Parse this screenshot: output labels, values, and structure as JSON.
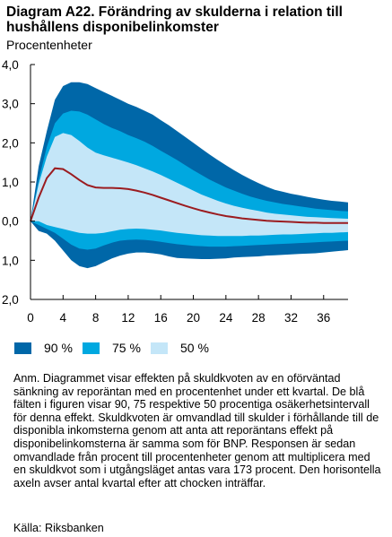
{
  "title": "Diagram A22. Förändring av skulderna i relation till hushållens disponibelinkomster",
  "subtitle": "Procentenheter",
  "chart_data": {
    "type": "area",
    "title": "Diagram A22. Förändring av skulderna i relation till hushållens disponibelinkomster",
    "ylabel": "Procentenheter",
    "xlabel": "",
    "xlim": [
      0,
      39
    ],
    "ylim": [
      -2,
      4
    ],
    "x_ticks": [
      0,
      4,
      8,
      12,
      16,
      20,
      24,
      28,
      32,
      36
    ],
    "y_ticks": [
      4,
      3,
      2,
      1,
      0,
      -1,
      -2
    ],
    "y_tick_labels": [
      "4,0",
      "3,0",
      "2,0",
      "1,0",
      "0,0",
      "1,0",
      "2,0"
    ],
    "grid": false,
    "x": [
      0,
      1,
      2,
      3,
      4,
      5,
      6,
      7,
      8,
      9,
      10,
      11,
      12,
      13,
      14,
      15,
      16,
      17,
      18,
      19,
      20,
      21,
      22,
      23,
      24,
      25,
      26,
      27,
      28,
      29,
      30,
      31,
      32,
      33,
      34,
      35,
      36,
      37,
      38,
      39
    ],
    "series": [
      {
        "name": "",
        "role": "median",
        "values": [
          0,
          0.6,
          1.1,
          1.35,
          1.33,
          1.2,
          1.05,
          0.92,
          0.86,
          0.85,
          0.85,
          0.84,
          0.82,
          0.78,
          0.73,
          0.67,
          0.6,
          0.53,
          0.46,
          0.39,
          0.33,
          0.27,
          0.22,
          0.17,
          0.13,
          0.1,
          0.07,
          0.05,
          0.03,
          0.01,
          0.0,
          -0.01,
          -0.02,
          -0.03,
          -0.04,
          -0.04,
          -0.05,
          -0.05,
          -0.05,
          -0.05
        ]
      },
      {
        "name": "90 %",
        "role": "upper",
        "values": [
          0,
          1.4,
          2.3,
          3.1,
          3.45,
          3.55,
          3.55,
          3.5,
          3.4,
          3.3,
          3.2,
          3.1,
          3.0,
          2.92,
          2.82,
          2.72,
          2.58,
          2.45,
          2.3,
          2.15,
          2.0,
          1.85,
          1.7,
          1.56,
          1.43,
          1.3,
          1.18,
          1.07,
          0.97,
          0.88,
          0.8,
          0.75,
          0.7,
          0.66,
          0.62,
          0.58,
          0.55,
          0.52,
          0.5,
          0.48
        ]
      },
      {
        "name": "90 %",
        "role": "lower",
        "values": [
          0,
          -0.25,
          -0.32,
          -0.5,
          -0.75,
          -1.0,
          -1.15,
          -1.2,
          -1.15,
          -1.05,
          -0.95,
          -0.88,
          -0.83,
          -0.8,
          -0.8,
          -0.82,
          -0.85,
          -0.9,
          -0.94,
          -0.95,
          -0.96,
          -0.97,
          -0.97,
          -0.96,
          -0.95,
          -0.93,
          -0.92,
          -0.91,
          -0.9,
          -0.88,
          -0.87,
          -0.86,
          -0.85,
          -0.84,
          -0.83,
          -0.82,
          -0.8,
          -0.78,
          -0.76,
          -0.74
        ]
      },
      {
        "name": "75 %",
        "role": "upper",
        "values": [
          0,
          1.05,
          1.9,
          2.5,
          2.75,
          2.82,
          2.8,
          2.72,
          2.6,
          2.48,
          2.38,
          2.3,
          2.2,
          2.12,
          2.03,
          1.92,
          1.8,
          1.68,
          1.56,
          1.43,
          1.3,
          1.18,
          1.06,
          0.96,
          0.86,
          0.78,
          0.7,
          0.63,
          0.57,
          0.52,
          0.48,
          0.44,
          0.41,
          0.38,
          0.35,
          0.32,
          0.3,
          0.28,
          0.26,
          0.25
        ]
      },
      {
        "name": "75 %",
        "role": "lower",
        "values": [
          0,
          -0.1,
          -0.2,
          -0.3,
          -0.45,
          -0.6,
          -0.7,
          -0.73,
          -0.7,
          -0.62,
          -0.55,
          -0.5,
          -0.48,
          -0.47,
          -0.48,
          -0.5,
          -0.53,
          -0.56,
          -0.59,
          -0.61,
          -0.63,
          -0.64,
          -0.65,
          -0.65,
          -0.65,
          -0.64,
          -0.63,
          -0.62,
          -0.61,
          -0.6,
          -0.59,
          -0.58,
          -0.57,
          -0.56,
          -0.55,
          -0.54,
          -0.53,
          -0.52,
          -0.51,
          -0.5
        ]
      },
      {
        "name": "50 %",
        "role": "upper",
        "values": [
          0,
          0.95,
          1.65,
          2.15,
          2.25,
          2.2,
          2.05,
          1.88,
          1.75,
          1.68,
          1.62,
          1.56,
          1.5,
          1.43,
          1.35,
          1.27,
          1.18,
          1.08,
          0.98,
          0.88,
          0.78,
          0.68,
          0.6,
          0.52,
          0.45,
          0.39,
          0.34,
          0.3,
          0.26,
          0.22,
          0.19,
          0.17,
          0.15,
          0.13,
          0.11,
          0.1,
          0.09,
          0.08,
          0.07,
          0.06
        ]
      },
      {
        "name": "50 %",
        "role": "lower",
        "values": [
          0,
          0.0,
          -0.1,
          -0.15,
          -0.2,
          -0.25,
          -0.3,
          -0.32,
          -0.32,
          -0.3,
          -0.26,
          -0.22,
          -0.2,
          -0.19,
          -0.2,
          -0.22,
          -0.24,
          -0.27,
          -0.3,
          -0.32,
          -0.34,
          -0.36,
          -0.37,
          -0.38,
          -0.38,
          -0.38,
          -0.38,
          -0.37,
          -0.37,
          -0.36,
          -0.35,
          -0.34,
          -0.34,
          -0.33,
          -0.32,
          -0.31,
          -0.3,
          -0.3,
          -0.29,
          -0.28
        ]
      }
    ],
    "legend": [
      {
        "label": "90 %",
        "color": "#0067a8"
      },
      {
        "label": "75 %",
        "color": "#00a8e0"
      },
      {
        "label": "50 %",
        "color": "#c4e6f8"
      }
    ],
    "median_color": "#9b1c20",
    "legend_placement": "bottom"
  },
  "note": "Anm. Diagrammet visar effekten på skuldkvoten av en oförväntad sänkning av reporäntan med en procentenhet under ett kvartal. De blå fälten i figuren visar 90, 75 respektive 50 procentiga osäkerhetsintervall för denna effekt. Skuldkvoten är omvandlad till skulder i förhållande till de disponibla inkomsterna genom att anta att reporäntans effekt på disponibelinkomsterna är samma som för BNP. Responsen är sedan omvandlade från procent till procentenheter genom att multiplicera med en skuldkvot som i utgångsläget antas vara 173 procent. Den horisontella axeln avser antal kvartal efter att chocken inträffar.",
  "source": "Källa: Riksbanken"
}
